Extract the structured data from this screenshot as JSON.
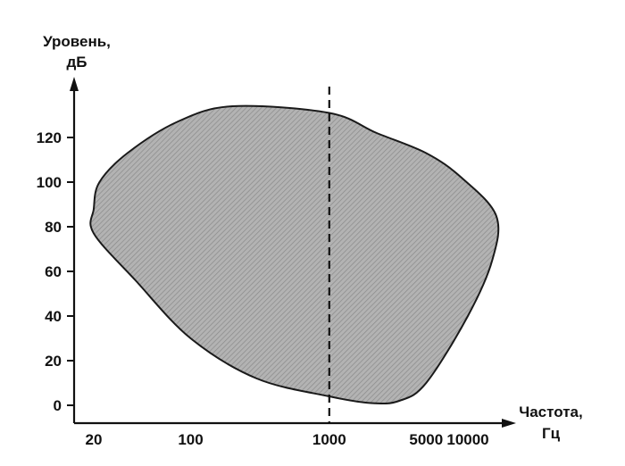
{
  "chart_data": {
    "type": "area",
    "title": "",
    "ylabel_lines": [
      "Уровень,",
      "дБ"
    ],
    "xlabel_lines": [
      "Частота,",
      "Гц"
    ],
    "y_ticks": [
      0,
      20,
      40,
      60,
      80,
      100,
      120
    ],
    "x_ticks": [
      {
        "value": 20,
        "label": "20"
      },
      {
        "value": 100,
        "label": "100"
      },
      {
        "value": 1000,
        "label": "1000"
      },
      {
        "value": 5000,
        "label": "5000"
      },
      {
        "value": 10000,
        "label": "10000"
      }
    ],
    "x_scale": "log",
    "ylim": [
      0,
      130
    ],
    "grid": false,
    "reference_line": {
      "x": 1000,
      "style": "dashed"
    },
    "region": [
      {
        "x": 20,
        "y": 88
      },
      {
        "x": 22,
        "y": 100
      },
      {
        "x": 35,
        "y": 113
      },
      {
        "x": 80,
        "y": 127
      },
      {
        "x": 200,
        "y": 134
      },
      {
        "x": 1000,
        "y": 131
      },
      {
        "x": 2200,
        "y": 122
      },
      {
        "x": 5000,
        "y": 113
      },
      {
        "x": 9000,
        "y": 102
      },
      {
        "x": 16000,
        "y": 85
      },
      {
        "x": 15000,
        "y": 65
      },
      {
        "x": 10000,
        "y": 40
      },
      {
        "x": 5000,
        "y": 10
      },
      {
        "x": 3200,
        "y": 2
      },
      {
        "x": 2000,
        "y": 1
      },
      {
        "x": 1000,
        "y": 4
      },
      {
        "x": 300,
        "y": 12
      },
      {
        "x": 100,
        "y": 30
      },
      {
        "x": 40,
        "y": 56
      },
      {
        "x": 20,
        "y": 77
      }
    ],
    "colors": {
      "fill": "#a8a8a8",
      "stroke": "#1a1a1a",
      "axis": "#111111"
    }
  }
}
